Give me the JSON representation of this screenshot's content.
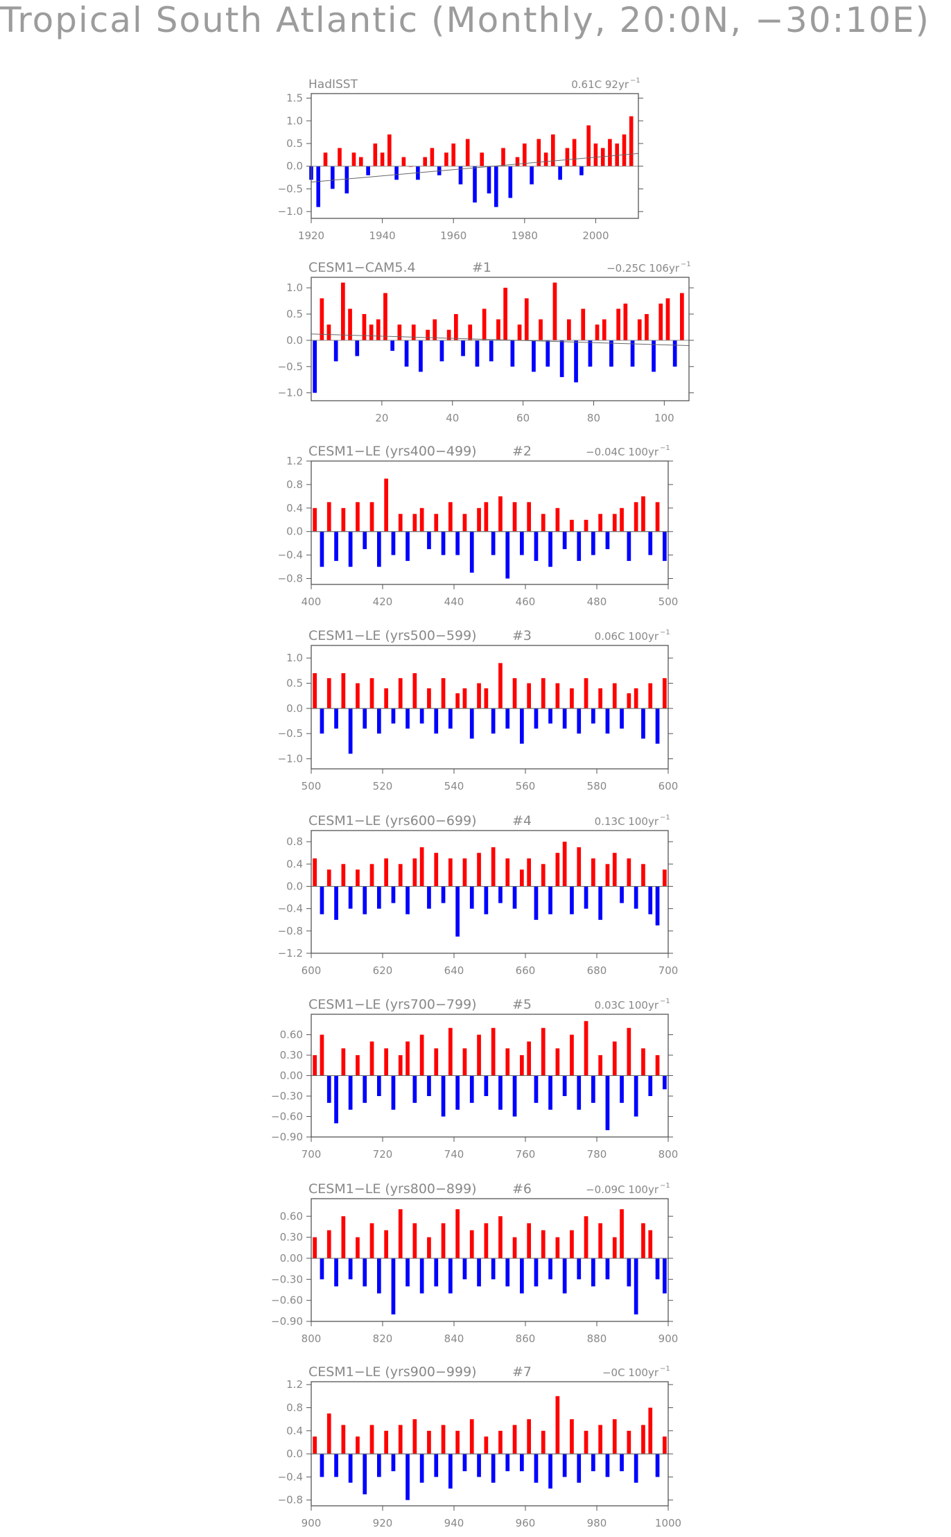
{
  "title": "Tropical South Atlantic (Monthly, 20:0N, −30:10E)",
  "colors": {
    "positive": "#ff0000",
    "negative": "#0000ff",
    "text": "#888888",
    "frame": "#555555"
  },
  "chart_data": [
    {
      "type": "bar",
      "panel": "HadISST",
      "title": "HadISST",
      "member": "",
      "trend_text": "0.61C",
      "trend_period": "92yr",
      "trend_exponent": "−1",
      "xlim": [
        1920,
        2012
      ],
      "ylim": [
        -1.15,
        1.6
      ],
      "xticks": [
        1920,
        1940,
        1960,
        1980,
        2000
      ],
      "yticks": [
        1.5,
        1.0,
        0.5,
        0.0,
        -0.5,
        -1.0
      ],
      "ytick_labels": [
        "1.5",
        "1.0",
        "0.5",
        "0.0",
        "−0.5",
        "−1.0"
      ],
      "trend_line": [
        -0.35,
        0.28
      ],
      "x": [
        1920,
        1922,
        1924,
        1926,
        1928,
        1930,
        1932,
        1934,
        1936,
        1938,
        1940,
        1942,
        1944,
        1946,
        1948,
        1950,
        1952,
        1954,
        1956,
        1958,
        1960,
        1962,
        1964,
        1966,
        1968,
        1970,
        1972,
        1974,
        1976,
        1978,
        1980,
        1982,
        1984,
        1986,
        1988,
        1990,
        1992,
        1994,
        1996,
        1998,
        2000,
        2002,
        2004,
        2006,
        2008,
        2010
      ],
      "values": [
        -0.3,
        -0.9,
        0.3,
        -0.5,
        0.4,
        -0.6,
        0.3,
        0.2,
        -0.2,
        0.5,
        0.3,
        0.7,
        -0.3,
        0.2,
        0.0,
        -0.3,
        0.2,
        0.4,
        -0.2,
        0.3,
        0.5,
        -0.4,
        0.6,
        -0.8,
        0.3,
        -0.6,
        -0.9,
        0.4,
        -0.7,
        0.2,
        0.5,
        -0.4,
        0.6,
        0.3,
        0.7,
        -0.3,
        0.4,
        0.6,
        -0.2,
        0.9,
        0.5,
        0.4,
        0.6,
        0.5,
        0.7,
        1.1
      ]
    },
    {
      "type": "bar",
      "panel": "CESM1-CAM5.4",
      "title": "CESM1−CAM5.4",
      "member": "#1",
      "trend_text": "−0.25C",
      "trend_period": "106yr",
      "trend_exponent": "−1",
      "xlim": [
        0,
        107
      ],
      "ylim": [
        -1.15,
        1.2
      ],
      "xticks": [
        20,
        40,
        60,
        80,
        100
      ],
      "yticks": [
        1.0,
        0.5,
        0.0,
        -0.5,
        -1.0
      ],
      "ytick_labels": [
        "1.0",
        "0.5",
        "0.0",
        "−0.5",
        "−1.0"
      ],
      "trend_line": [
        0.12,
        -0.1
      ],
      "x": [
        1,
        3,
        5,
        7,
        9,
        11,
        13,
        15,
        17,
        19,
        21,
        23,
        25,
        27,
        29,
        31,
        33,
        35,
        37,
        39,
        41,
        43,
        45,
        47,
        49,
        51,
        53,
        55,
        57,
        59,
        61,
        63,
        65,
        67,
        69,
        71,
        73,
        75,
        77,
        79,
        81,
        83,
        85,
        87,
        89,
        91,
        93,
        95,
        97,
        99,
        101,
        103,
        105
      ],
      "values": [
        -1.0,
        0.8,
        0.3,
        -0.4,
        1.1,
        0.6,
        -0.3,
        0.5,
        0.3,
        0.4,
        0.9,
        -0.2,
        0.3,
        -0.5,
        0.3,
        -0.6,
        0.2,
        0.4,
        -0.4,
        0.2,
        0.5,
        -0.3,
        0.3,
        -0.5,
        0.6,
        -0.4,
        0.4,
        1.0,
        -0.5,
        0.3,
        0.8,
        -0.6,
        0.4,
        -0.5,
        1.1,
        -0.7,
        0.4,
        -0.8,
        0.6,
        -0.5,
        0.3,
        0.4,
        -0.5,
        0.6,
        0.7,
        -0.5,
        0.4,
        0.5,
        -0.6,
        0.7,
        0.8,
        -0.5,
        0.9
      ]
    },
    {
      "type": "bar",
      "panel": "CESM1-LE 400-499",
      "title": "CESM1−LE (yrs400−499)",
      "member": "#2",
      "trend_text": "−0.04C",
      "trend_period": "100yr",
      "trend_exponent": "−1",
      "xlim": [
        400,
        500
      ],
      "ylim": [
        -0.9,
        1.2
      ],
      "xticks": [
        400,
        420,
        440,
        460,
        480,
        500
      ],
      "yticks": [
        1.2,
        0.8,
        0.4,
        0.0,
        -0.4,
        -0.8
      ],
      "ytick_labels": [
        "1.2",
        "0.8",
        "0.4",
        "0.0",
        "−0.4",
        "−0.8"
      ],
      "trend_line": [
        0.0,
        0.0
      ],
      "x": [
        401,
        403,
        405,
        407,
        409,
        411,
        413,
        415,
        417,
        419,
        421,
        423,
        425,
        427,
        429,
        431,
        433,
        435,
        437,
        439,
        441,
        443,
        445,
        447,
        449,
        451,
        453,
        455,
        457,
        459,
        461,
        463,
        465,
        467,
        469,
        471,
        473,
        475,
        477,
        479,
        481,
        483,
        485,
        487,
        489,
        491,
        493,
        495,
        497,
        499
      ],
      "values": [
        0.4,
        -0.6,
        0.5,
        -0.5,
        0.4,
        -0.6,
        0.5,
        -0.3,
        0.5,
        -0.6,
        0.9,
        -0.4,
        0.3,
        -0.5,
        0.3,
        0.4,
        -0.3,
        0.3,
        -0.4,
        0.5,
        -0.4,
        0.3,
        -0.7,
        0.4,
        0.5,
        -0.4,
        0.6,
        -0.8,
        0.5,
        -0.4,
        0.5,
        -0.5,
        0.3,
        -0.6,
        0.4,
        -0.3,
        0.2,
        -0.5,
        0.2,
        -0.4,
        0.3,
        -0.3,
        0.3,
        0.4,
        -0.5,
        0.5,
        0.6,
        -0.4,
        0.5,
        -0.5
      ]
    },
    {
      "type": "bar",
      "panel": "CESM1-LE 500-599",
      "title": "CESM1−LE (yrs500−599)",
      "member": "#3",
      "trend_text": "0.06C",
      "trend_period": "100yr",
      "trend_exponent": "−1",
      "xlim": [
        500,
        600
      ],
      "ylim": [
        -1.2,
        1.25
      ],
      "xticks": [
        500,
        520,
        540,
        560,
        580,
        600
      ],
      "yticks": [
        1.0,
        0.5,
        0.0,
        -0.5,
        -1.0
      ],
      "ytick_labels": [
        "1.0",
        "0.5",
        "0.0",
        "−0.5",
        "−1.0"
      ],
      "trend_line": [
        0.0,
        0.0
      ],
      "x": [
        501,
        503,
        505,
        507,
        509,
        511,
        513,
        515,
        517,
        519,
        521,
        523,
        525,
        527,
        529,
        531,
        533,
        535,
        537,
        539,
        541,
        543,
        545,
        547,
        549,
        551,
        553,
        555,
        557,
        559,
        561,
        563,
        565,
        567,
        569,
        571,
        573,
        575,
        577,
        579,
        581,
        583,
        585,
        587,
        589,
        591,
        593,
        595,
        597,
        599
      ],
      "values": [
        0.7,
        -0.5,
        0.6,
        -0.4,
        0.7,
        -0.9,
        0.5,
        -0.4,
        0.6,
        -0.5,
        0.4,
        -0.3,
        0.6,
        -0.4,
        0.7,
        -0.3,
        0.4,
        -0.5,
        0.6,
        -0.4,
        0.3,
        0.4,
        -0.6,
        0.5,
        0.4,
        -0.5,
        0.9,
        -0.4,
        0.6,
        -0.7,
        0.5,
        -0.4,
        0.6,
        -0.3,
        0.5,
        -0.4,
        0.4,
        -0.5,
        0.6,
        -0.3,
        0.4,
        -0.5,
        0.5,
        -0.4,
        0.3,
        0.4,
        -0.6,
        0.5,
        -0.7,
        0.6
      ]
    },
    {
      "type": "bar",
      "panel": "CESM1-LE 600-699",
      "title": "CESM1−LE (yrs600−699)",
      "member": "#4",
      "trend_text": "0.13C",
      "trend_period": "100yr",
      "trend_exponent": "−1",
      "xlim": [
        600,
        700
      ],
      "ylim": [
        -1.2,
        1.0
      ],
      "xticks": [
        600,
        620,
        640,
        660,
        680,
        700
      ],
      "yticks": [
        0.8,
        0.4,
        0.0,
        -0.4,
        -0.8,
        -1.2
      ],
      "ytick_labels": [
        "0.8",
        "0.4",
        "0.0",
        "−0.4",
        "−0.8",
        "−1.2"
      ],
      "trend_line": [
        0.0,
        0.0
      ],
      "x": [
        601,
        603,
        605,
        607,
        609,
        611,
        613,
        615,
        617,
        619,
        621,
        623,
        625,
        627,
        629,
        631,
        633,
        635,
        637,
        639,
        641,
        643,
        645,
        647,
        649,
        651,
        653,
        655,
        657,
        659,
        661,
        663,
        665,
        667,
        669,
        671,
        673,
        675,
        677,
        679,
        681,
        683,
        685,
        687,
        689,
        691,
        693,
        695,
        697,
        699
      ],
      "values": [
        0.5,
        -0.5,
        0.3,
        -0.6,
        0.4,
        -0.4,
        0.3,
        -0.5,
        0.4,
        -0.4,
        0.5,
        -0.3,
        0.4,
        -0.5,
        0.5,
        0.7,
        -0.4,
        0.6,
        -0.3,
        0.5,
        -0.9,
        0.5,
        -0.4,
        0.6,
        -0.5,
        0.7,
        -0.3,
        0.5,
        -0.4,
        0.3,
        0.5,
        -0.6,
        0.4,
        -0.5,
        0.6,
        0.8,
        -0.5,
        0.7,
        -0.4,
        0.5,
        -0.6,
        0.4,
        0.6,
        -0.3,
        0.5,
        -0.4,
        0.4,
        -0.5,
        -0.7,
        0.3
      ]
    },
    {
      "type": "bar",
      "panel": "CESM1-LE 700-799",
      "title": "CESM1−LE (yrs700−799)",
      "member": "#5",
      "trend_text": "0.03C",
      "trend_period": "100yr",
      "trend_exponent": "−1",
      "xlim": [
        700,
        800
      ],
      "ylim": [
        -0.9,
        0.9
      ],
      "xticks": [
        700,
        720,
        740,
        760,
        780,
        800
      ],
      "yticks": [
        0.6,
        0.3,
        0.0,
        -0.3,
        -0.6,
        -0.9
      ],
      "ytick_labels": [
        "0.60",
        "0.30",
        "0.00",
        "−0.30",
        "−0.60",
        "−0.90"
      ],
      "trend_line": [
        0.0,
        0.0
      ],
      "x": [
        701,
        703,
        705,
        707,
        709,
        711,
        713,
        715,
        717,
        719,
        721,
        723,
        725,
        727,
        729,
        731,
        733,
        735,
        737,
        739,
        741,
        743,
        745,
        747,
        749,
        751,
        753,
        755,
        757,
        759,
        761,
        763,
        765,
        767,
        769,
        771,
        773,
        775,
        777,
        779,
        781,
        783,
        785,
        787,
        789,
        791,
        793,
        795,
        797,
        799
      ],
      "values": [
        0.3,
        0.6,
        -0.4,
        -0.7,
        0.4,
        -0.5,
        0.3,
        -0.4,
        0.5,
        -0.3,
        0.4,
        -0.5,
        0.3,
        0.5,
        -0.4,
        0.6,
        -0.3,
        0.4,
        -0.6,
        0.7,
        -0.5,
        0.4,
        -0.4,
        0.6,
        -0.3,
        0.7,
        -0.5,
        0.4,
        -0.6,
        0.3,
        0.5,
        -0.4,
        0.7,
        -0.5,
        0.4,
        -0.3,
        0.6,
        -0.5,
        0.8,
        -0.4,
        0.3,
        -0.8,
        0.5,
        -0.4,
        0.7,
        -0.6,
        0.4,
        -0.3,
        0.3,
        -0.2
      ]
    },
    {
      "type": "bar",
      "panel": "CESM1-LE 800-899",
      "title": "CESM1−LE (yrs800−899)",
      "member": "#6",
      "trend_text": "−0.09C",
      "trend_period": "100yr",
      "trend_exponent": "−1",
      "xlim": [
        800,
        900
      ],
      "ylim": [
        -0.9,
        0.85
      ],
      "xticks": [
        800,
        820,
        840,
        860,
        880,
        900
      ],
      "yticks": [
        0.6,
        0.3,
        0.0,
        -0.3,
        -0.6,
        -0.9
      ],
      "ytick_labels": [
        "0.60",
        "0.30",
        "0.00",
        "−0.30",
        "−0.60",
        "−0.90"
      ],
      "trend_line": [
        0.0,
        0.0
      ],
      "x": [
        801,
        803,
        805,
        807,
        809,
        811,
        813,
        815,
        817,
        819,
        821,
        823,
        825,
        827,
        829,
        831,
        833,
        835,
        837,
        839,
        841,
        843,
        845,
        847,
        849,
        851,
        853,
        855,
        857,
        859,
        861,
        863,
        865,
        867,
        869,
        871,
        873,
        875,
        877,
        879,
        881,
        883,
        885,
        887,
        889,
        891,
        893,
        895,
        897,
        899
      ],
      "values": [
        0.3,
        -0.3,
        0.4,
        -0.4,
        0.6,
        -0.3,
        0.3,
        -0.4,
        0.5,
        -0.5,
        0.4,
        -0.8,
        0.7,
        -0.4,
        0.5,
        -0.5,
        0.3,
        -0.4,
        0.5,
        -0.5,
        0.7,
        -0.3,
        0.4,
        -0.4,
        0.5,
        -0.3,
        0.6,
        -0.4,
        0.3,
        -0.5,
        0.5,
        -0.4,
        0.4,
        -0.3,
        0.3,
        -0.5,
        0.4,
        -0.3,
        0.6,
        -0.4,
        0.5,
        -0.3,
        0.3,
        0.7,
        -0.4,
        -0.8,
        0.5,
        0.4,
        -0.3,
        -0.5
      ]
    },
    {
      "type": "bar",
      "panel": "CESM1-LE 900-999",
      "title": "CESM1−LE (yrs900−999)",
      "member": "#7",
      "trend_text": "−0C",
      "trend_period": "100yr",
      "trend_exponent": "−1",
      "xlim": [
        900,
        1000
      ],
      "ylim": [
        -0.9,
        1.25
      ],
      "xticks": [
        900,
        920,
        940,
        960,
        980,
        1000
      ],
      "yticks": [
        1.2,
        0.8,
        0.4,
        0.0,
        -0.4,
        -0.8
      ],
      "ytick_labels": [
        "1.2",
        "0.8",
        "0.4",
        "0.0",
        "−0.4",
        "−0.8"
      ],
      "trend_line": [
        0.0,
        0.0
      ],
      "x": [
        901,
        903,
        905,
        907,
        909,
        911,
        913,
        915,
        917,
        919,
        921,
        923,
        925,
        927,
        929,
        931,
        933,
        935,
        937,
        939,
        941,
        943,
        945,
        947,
        949,
        951,
        953,
        955,
        957,
        959,
        961,
        963,
        965,
        967,
        969,
        971,
        973,
        975,
        977,
        979,
        981,
        983,
        985,
        987,
        989,
        991,
        993,
        995,
        997,
        999
      ],
      "values": [
        0.3,
        -0.4,
        0.7,
        -0.4,
        0.5,
        -0.5,
        0.3,
        -0.7,
        0.5,
        -0.4,
        0.4,
        -0.3,
        0.5,
        -0.8,
        0.6,
        -0.5,
        0.4,
        -0.4,
        0.5,
        -0.6,
        0.4,
        -0.3,
        0.6,
        -0.4,
        0.3,
        -0.5,
        0.4,
        -0.3,
        0.5,
        -0.3,
        0.6,
        -0.5,
        0.4,
        -0.6,
        1.0,
        -0.4,
        0.6,
        -0.5,
        0.4,
        -0.3,
        0.5,
        -0.4,
        0.6,
        -0.3,
        0.4,
        -0.5,
        0.5,
        0.8,
        -0.4,
        0.3
      ]
    }
  ]
}
